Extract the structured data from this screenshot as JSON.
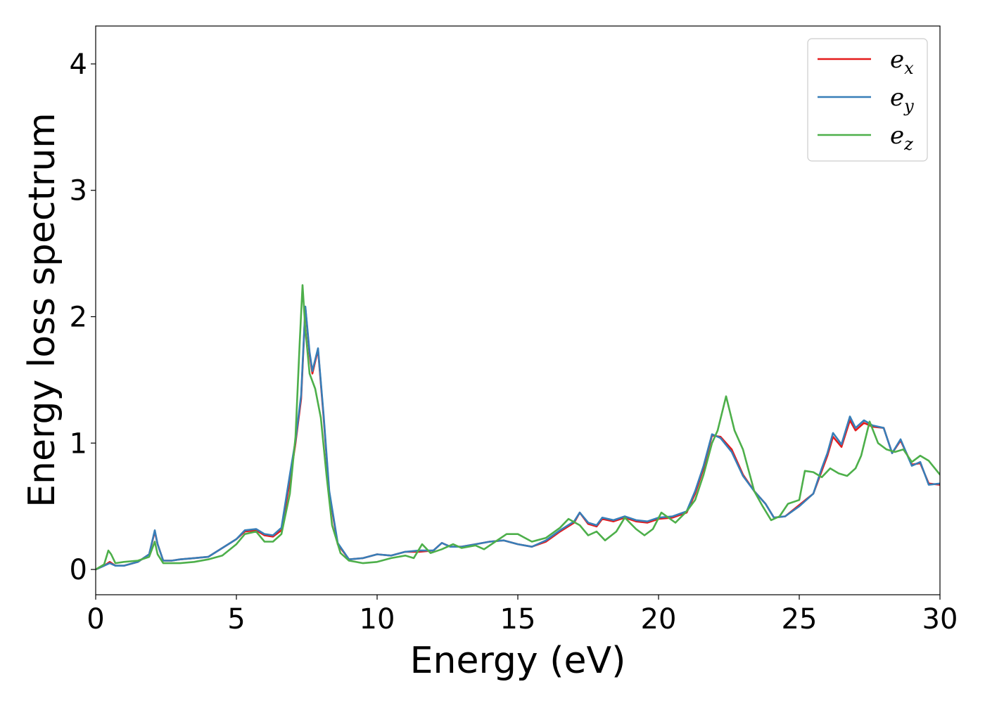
{
  "chart_data": {
    "type": "line",
    "title": "",
    "xlabel": "Energy (eV)",
    "ylabel": "Energy loss spectrum",
    "xlim": [
      0,
      30
    ],
    "ylim": [
      -0.2,
      4.3
    ],
    "xticks": [
      "0",
      "5",
      "10",
      "15",
      "20",
      "25",
      "30"
    ],
    "yticks": [
      "0",
      "1",
      "2",
      "3",
      "4"
    ],
    "grid": false,
    "legend_position": "top-right",
    "series": [
      {
        "name": "e_x",
        "legend_base": "e",
        "legend_sub": "x",
        "color": "#e41a1c",
        "x": [
          0,
          0.3,
          0.5,
          0.7,
          1.0,
          1.5,
          1.9,
          2.1,
          2.2,
          2.4,
          2.7,
          3.0,
          3.5,
          4.0,
          4.5,
          5.0,
          5.3,
          5.7,
          6.0,
          6.3,
          6.6,
          6.9,
          7.1,
          7.3,
          7.45,
          7.6,
          7.7,
          7.9,
          8.1,
          8.3,
          8.6,
          9.0,
          9.5,
          10.0,
          10.5,
          11.0,
          11.5,
          12.0,
          12.3,
          12.6,
          13.0,
          13.5,
          14.0,
          14.5,
          15.0,
          15.5,
          16.0,
          16.5,
          17.0,
          17.2,
          17.5,
          17.8,
          18.0,
          18.4,
          18.8,
          19.2,
          19.6,
          20.0,
          20.5,
          21.0,
          21.3,
          21.6,
          21.9,
          22.2,
          22.6,
          23.0,
          23.4,
          23.8,
          24.1,
          24.5,
          25.0,
          25.5,
          25.8,
          26.0,
          26.2,
          26.5,
          26.8,
          27.0,
          27.3,
          27.6,
          28.0,
          28.3,
          28.6,
          29.0,
          29.3,
          29.6,
          30.0
        ],
        "y": [
          0.0,
          0.03,
          0.06,
          0.03,
          0.03,
          0.06,
          0.12,
          0.3,
          0.2,
          0.07,
          0.07,
          0.08,
          0.09,
          0.1,
          0.17,
          0.24,
          0.3,
          0.31,
          0.27,
          0.26,
          0.31,
          0.7,
          1.0,
          1.35,
          2.07,
          1.7,
          1.55,
          1.74,
          1.2,
          0.6,
          0.2,
          0.08,
          0.09,
          0.12,
          0.11,
          0.14,
          0.14,
          0.15,
          0.21,
          0.18,
          0.18,
          0.2,
          0.22,
          0.23,
          0.2,
          0.18,
          0.22,
          0.3,
          0.37,
          0.45,
          0.36,
          0.34,
          0.4,
          0.38,
          0.41,
          0.38,
          0.37,
          0.4,
          0.41,
          0.45,
          0.6,
          0.8,
          1.06,
          1.05,
          0.95,
          0.75,
          0.62,
          0.52,
          0.41,
          0.42,
          0.51,
          0.6,
          0.78,
          0.9,
          1.05,
          0.97,
          1.18,
          1.1,
          1.16,
          1.13,
          1.12,
          0.92,
          1.02,
          0.83,
          0.84,
          0.68,
          0.67
        ]
      },
      {
        "name": "e_y",
        "legend_base": "e",
        "legend_sub": "y",
        "color": "#377eb8",
        "x": [
          0,
          0.3,
          0.5,
          0.7,
          1.0,
          1.5,
          1.9,
          2.1,
          2.2,
          2.4,
          2.7,
          3.0,
          3.5,
          4.0,
          4.5,
          5.0,
          5.3,
          5.7,
          6.0,
          6.3,
          6.6,
          6.9,
          7.1,
          7.3,
          7.45,
          7.6,
          7.7,
          7.9,
          8.1,
          8.3,
          8.6,
          9.0,
          9.5,
          10.0,
          10.5,
          11.0,
          11.5,
          12.0,
          12.3,
          12.6,
          13.0,
          13.5,
          14.0,
          14.5,
          15.0,
          15.5,
          16.0,
          16.5,
          17.0,
          17.2,
          17.5,
          17.8,
          18.0,
          18.4,
          18.8,
          19.2,
          19.6,
          20.0,
          20.5,
          21.0,
          21.3,
          21.6,
          21.9,
          22.2,
          22.6,
          23.0,
          23.4,
          23.8,
          24.1,
          24.5,
          25.0,
          25.5,
          25.8,
          26.0,
          26.2,
          26.5,
          26.8,
          27.0,
          27.3,
          27.6,
          28.0,
          28.3,
          28.6,
          29.0,
          29.3,
          29.6,
          30.0
        ],
        "y": [
          0.0,
          0.03,
          0.05,
          0.03,
          0.03,
          0.06,
          0.12,
          0.31,
          0.2,
          0.07,
          0.07,
          0.08,
          0.09,
          0.1,
          0.17,
          0.24,
          0.31,
          0.32,
          0.28,
          0.27,
          0.33,
          0.75,
          1.02,
          1.38,
          2.08,
          1.72,
          1.57,
          1.75,
          1.22,
          0.62,
          0.21,
          0.08,
          0.09,
          0.12,
          0.11,
          0.14,
          0.15,
          0.15,
          0.21,
          0.18,
          0.18,
          0.2,
          0.22,
          0.23,
          0.2,
          0.18,
          0.23,
          0.31,
          0.38,
          0.45,
          0.37,
          0.35,
          0.41,
          0.39,
          0.42,
          0.39,
          0.38,
          0.41,
          0.42,
          0.46,
          0.62,
          0.82,
          1.07,
          1.04,
          0.93,
          0.74,
          0.62,
          0.52,
          0.41,
          0.42,
          0.5,
          0.6,
          0.8,
          0.92,
          1.08,
          0.99,
          1.21,
          1.12,
          1.18,
          1.14,
          1.12,
          0.92,
          1.03,
          0.82,
          0.85,
          0.67,
          0.68
        ]
      },
      {
        "name": "e_z",
        "legend_base": "e",
        "legend_sub": "z",
        "color": "#4daf4a",
        "x": [
          0,
          0.3,
          0.45,
          0.55,
          0.7,
          1.0,
          1.5,
          1.9,
          2.1,
          2.2,
          2.4,
          2.7,
          3.0,
          3.5,
          4.0,
          4.5,
          5.0,
          5.3,
          5.7,
          6.0,
          6.3,
          6.6,
          6.9,
          7.1,
          7.25,
          7.35,
          7.45,
          7.6,
          7.8,
          8.0,
          8.2,
          8.4,
          8.7,
          9.0,
          9.5,
          10.0,
          10.5,
          11.0,
          11.3,
          11.6,
          11.9,
          12.3,
          12.7,
          13.0,
          13.5,
          13.8,
          14.2,
          14.6,
          15.0,
          15.5,
          16.0,
          16.5,
          16.8,
          17.2,
          17.5,
          17.8,
          18.1,
          18.5,
          18.8,
          19.2,
          19.5,
          19.8,
          20.1,
          20.6,
          21.0,
          21.3,
          21.6,
          21.9,
          22.1,
          22.4,
          22.7,
          23.0,
          23.4,
          23.7,
          24.0,
          24.3,
          24.6,
          25.0,
          25.2,
          25.5,
          25.8,
          26.1,
          26.4,
          26.7,
          27.0,
          27.2,
          27.5,
          27.8,
          28.1,
          28.4,
          28.7,
          29.0,
          29.3,
          29.6,
          30.0
        ],
        "y": [
          0.0,
          0.04,
          0.15,
          0.12,
          0.05,
          0.06,
          0.07,
          0.1,
          0.22,
          0.12,
          0.05,
          0.05,
          0.05,
          0.06,
          0.08,
          0.11,
          0.2,
          0.28,
          0.3,
          0.22,
          0.22,
          0.28,
          0.6,
          1.05,
          1.8,
          2.25,
          1.9,
          1.55,
          1.43,
          1.2,
          0.75,
          0.35,
          0.13,
          0.07,
          0.05,
          0.06,
          0.09,
          0.11,
          0.09,
          0.2,
          0.13,
          0.16,
          0.2,
          0.17,
          0.19,
          0.16,
          0.22,
          0.28,
          0.28,
          0.22,
          0.25,
          0.33,
          0.4,
          0.35,
          0.27,
          0.3,
          0.23,
          0.3,
          0.41,
          0.32,
          0.27,
          0.32,
          0.45,
          0.37,
          0.46,
          0.55,
          0.75,
          1.0,
          1.1,
          1.37,
          1.1,
          0.95,
          0.62,
          0.5,
          0.39,
          0.42,
          0.52,
          0.55,
          0.78,
          0.77,
          0.73,
          0.8,
          0.76,
          0.74,
          0.8,
          0.9,
          1.17,
          1.0,
          0.95,
          0.93,
          0.95,
          0.85,
          0.9,
          0.86,
          0.75
        ]
      }
    ]
  }
}
